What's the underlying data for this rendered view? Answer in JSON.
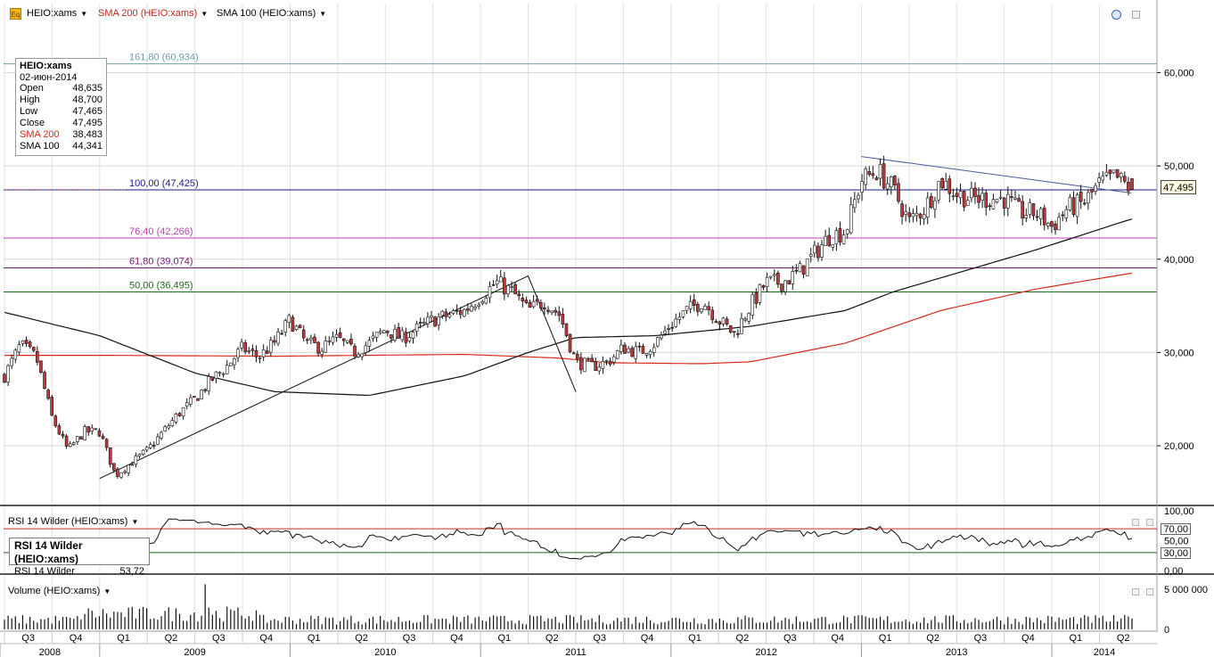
{
  "header": {
    "symbol": "HEIO:xams",
    "sma200_label": "SMA 200 (HEIO:xams)",
    "sma100_label": "SMA 100 (HEIO:xams)"
  },
  "info": {
    "title": "HEIO:xams",
    "date": "02-июн-2014",
    "rows": [
      {
        "label": "Open",
        "value": "48,635"
      },
      {
        "label": "High",
        "value": "48,700"
      },
      {
        "label": "Low",
        "value": "47,465"
      },
      {
        "label": "Close",
        "value": "47,495"
      },
      {
        "label": "SMA 200",
        "value": "38,483"
      },
      {
        "label": "SMA 100",
        "value": "44,341"
      }
    ]
  },
  "colors": {
    "sma200": "#d82a1a",
    "sma100": "#111111",
    "up": "#ffffff",
    "down": "#c0393b",
    "fib1618": "#6a9fa6",
    "fib100": "#1a1a8a",
    "fib764": "#c63bb5",
    "fib618": "#7a1a7a",
    "fib50": "#1d6b1d",
    "trend": "#4a5a9a",
    "rsi": "#111111",
    "rsi_hi": "#d82a1a",
    "rsi_lo": "#1d6b1d",
    "volume": "#111111"
  },
  "price_tag": "47,495",
  "rsi_panel": {
    "label": "RSI 14 Wilder (HEIO:xams)",
    "box_title": "RSI 14 Wilder (HEIO:xams)",
    "box_row_label": "RSI 14 Wilder",
    "box_row_value": "53,72",
    "tag70": "70,00",
    "tag30": "30,00",
    "tags": [
      "100,00",
      "70,00",
      "50,00",
      "30,00",
      "0,00"
    ]
  },
  "volume_panel": {
    "label": "Volume (HEIO:xams)",
    "ticks": [
      "5 000 000",
      "0"
    ]
  },
  "chart_data": {
    "type": "candlestick",
    "y_ticks": [
      "60,000",
      "50,000",
      "40,000",
      "30,000",
      "20,000"
    ],
    "ylim": [
      13.7,
      67.4
    ],
    "quarters": [
      "Q3",
      "Q4",
      "Q1",
      "Q2",
      "Q3",
      "Q4",
      "Q1",
      "Q2",
      "Q3",
      "Q4",
      "Q1",
      "Q2",
      "Q3",
      "Q4",
      "Q1",
      "Q2",
      "Q3",
      "Q4",
      "Q1",
      "Q2",
      "Q3",
      "Q4",
      "Q1",
      "Q2"
    ],
    "years": [
      "2008",
      "2009",
      "2010",
      "2011",
      "2012",
      "2013",
      "2014"
    ],
    "fibonacci": [
      {
        "label": "161,80 (60,934)",
        "value": 60.934
      },
      {
        "label": "100,00 (47,425)",
        "value": 47.425
      },
      {
        "label": "76,40 (42,266)",
        "value": 42.266
      },
      {
        "label": "61,80 (39,074)",
        "value": 39.074
      },
      {
        "label": "50,00 (36,495)",
        "value": 36.495
      }
    ],
    "trendlines": [
      {
        "points": [
          [
            "2009-01",
            16.5
          ],
          [
            "2011-04",
            38.2
          ],
          [
            "2011-07",
            25.8
          ]
        ]
      },
      {
        "points": [
          [
            "2013-01",
            51.0
          ],
          [
            "2014-06",
            47.1
          ]
        ]
      }
    ],
    "weekly_close_anchors": [
      [
        "2008-07",
        27.5
      ],
      [
        "2008-08",
        30.8
      ],
      [
        "2008-09",
        29.5
      ],
      [
        "2008-10",
        23.0
      ],
      [
        "2008-11",
        19.5
      ],
      [
        "2008-12",
        21.5
      ],
      [
        "2009-01",
        21.5
      ],
      [
        "2009-02",
        16.8
      ],
      [
        "2009-03",
        18.2
      ],
      [
        "2009-04",
        19.5
      ],
      [
        "2009-05",
        21.5
      ],
      [
        "2009-06",
        23.5
      ],
      [
        "2009-07",
        25.0
      ],
      [
        "2009-08",
        27.0
      ],
      [
        "2009-09",
        28.5
      ],
      [
        "2009-10",
        30.5
      ],
      [
        "2009-11",
        29.5
      ],
      [
        "2009-12",
        31.0
      ],
      [
        "2010-01",
        33.5
      ],
      [
        "2010-02",
        31.0
      ],
      [
        "2010-03",
        30.5
      ],
      [
        "2010-04",
        31.5
      ],
      [
        "2010-05",
        30.0
      ],
      [
        "2010-06",
        31.0
      ],
      [
        "2010-07",
        32.5
      ],
      [
        "2010-08",
        31.5
      ],
      [
        "2010-09",
        32.5
      ],
      [
        "2010-10",
        33.5
      ],
      [
        "2010-11",
        34.0
      ],
      [
        "2010-12",
        34.5
      ],
      [
        "2011-01",
        36.0
      ],
      [
        "2011-02",
        37.5
      ],
      [
        "2011-03",
        36.5
      ],
      [
        "2011-04",
        34.5
      ],
      [
        "2011-05",
        35.5
      ],
      [
        "2011-06",
        34.0
      ],
      [
        "2011-07",
        29.0
      ],
      [
        "2011-08",
        28.5
      ],
      [
        "2011-09",
        29.0
      ],
      [
        "2011-10",
        30.5
      ],
      [
        "2011-11",
        30.0
      ],
      [
        "2011-12",
        31.0
      ],
      [
        "2012-01",
        33.0
      ],
      [
        "2012-02",
        34.5
      ],
      [
        "2012-03",
        35.5
      ],
      [
        "2012-04",
        33.5
      ],
      [
        "2012-05",
        32.0
      ],
      [
        "2012-06",
        35.0
      ],
      [
        "2012-07",
        37.5
      ],
      [
        "2012-08",
        37.5
      ],
      [
        "2012-09",
        38.5
      ],
      [
        "2012-10",
        40.5
      ],
      [
        "2012-11",
        42.5
      ],
      [
        "2012-12",
        43.0
      ],
      [
        "2013-01",
        48.5
      ],
      [
        "2013-02",
        49.5
      ],
      [
        "2013-03",
        47.5
      ],
      [
        "2013-04",
        44.0
      ],
      [
        "2013-05",
        45.5
      ],
      [
        "2013-06",
        48.5
      ],
      [
        "2013-07",
        47.0
      ],
      [
        "2013-08",
        46.5
      ],
      [
        "2013-09",
        46.5
      ],
      [
        "2013-10",
        46.5
      ],
      [
        "2013-11",
        45.0
      ],
      [
        "2013-12",
        45.0
      ],
      [
        "2014-01",
        43.5
      ],
      [
        "2014-02",
        45.5
      ],
      [
        "2014-03",
        46.0
      ],
      [
        "2014-04",
        48.0
      ],
      [
        "2014-05",
        48.8
      ],
      [
        "2014-06",
        47.5
      ]
    ],
    "sma200_anchors": [
      [
        "2008-07",
        29.7
      ],
      [
        "2009-01",
        29.7
      ],
      [
        "2009-12",
        29.6
      ],
      [
        "2010-12",
        29.8
      ],
      [
        "2011-06",
        29.4
      ],
      [
        "2011-09",
        28.9
      ],
      [
        "2012-03",
        28.8
      ],
      [
        "2012-06",
        29.0
      ],
      [
        "2012-12",
        31.0
      ],
      [
        "2013-06",
        34.5
      ],
      [
        "2013-12",
        36.8
      ],
      [
        "2014-06",
        38.5
      ]
    ],
    "sma100_anchors": [
      [
        "2008-07",
        34.3
      ],
      [
        "2009-01",
        31.8
      ],
      [
        "2009-07",
        27.8
      ],
      [
        "2009-12",
        25.8
      ],
      [
        "2010-06",
        25.4
      ],
      [
        "2010-12",
        27.5
      ],
      [
        "2011-04",
        30.0
      ],
      [
        "2011-07",
        31.6
      ],
      [
        "2011-12",
        31.8
      ],
      [
        "2012-06",
        32.8
      ],
      [
        "2012-12",
        34.5
      ],
      [
        "2013-03",
        36.5
      ],
      [
        "2013-07",
        38.5
      ],
      [
        "2013-12",
        41.0
      ],
      [
        "2014-06",
        44.3
      ]
    ],
    "rsi_last": 53.72,
    "rsi_levels": [
      70,
      30
    ]
  }
}
